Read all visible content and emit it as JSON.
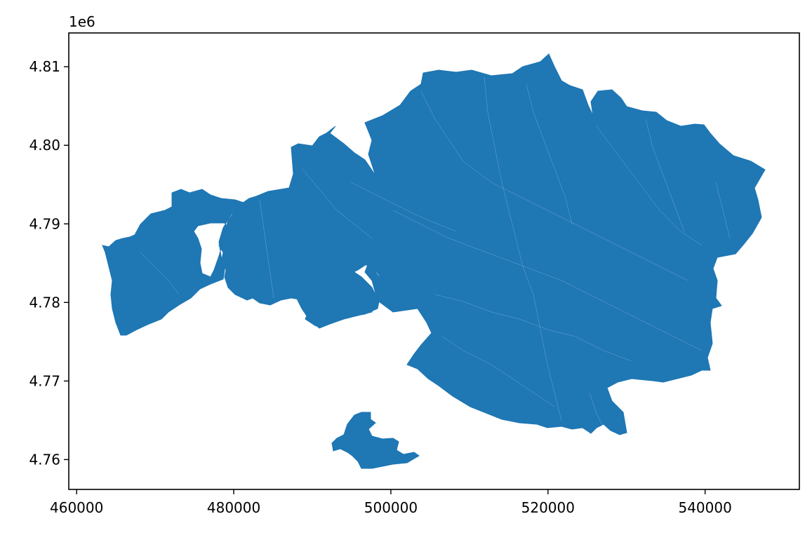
{
  "chart_data": {
    "type": "map",
    "title": "",
    "xlabel": "",
    "ylabel": "",
    "x_ticks": [
      460000,
      480000,
      500000,
      520000,
      540000
    ],
    "y_ticks": [
      4.76,
      4.77,
      4.78,
      4.79,
      4.8,
      4.81
    ],
    "y_tick_labels": [
      "4.76",
      "4.77",
      "4.78",
      "4.79",
      "4.80",
      "4.81"
    ],
    "x_tick_labels": [
      "460000",
      "480000",
      "500000",
      "520000",
      "540000"
    ],
    "y_offset_label": "1e6",
    "xlim": [
      459000,
      552000
    ],
    "ylim": [
      4.7562,
      4.8143
    ],
    "fill_color": "#1f77b4",
    "boundary_color": "#ffffff",
    "grid": false
  }
}
